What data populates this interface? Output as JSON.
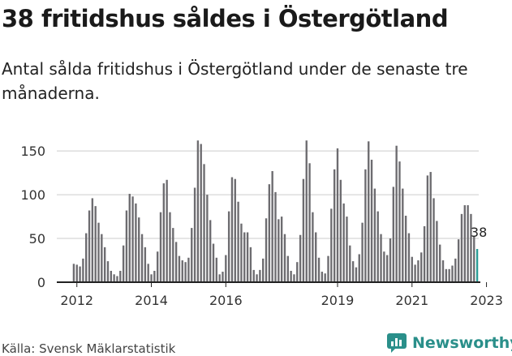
{
  "title": "38 fritidshus såldes i Östergötland",
  "subtitle": "Antal sålda fritidshus i Östergötland under de senaste tre månaderna.",
  "source": "Källa: Svensk Mäklarstatistik",
  "brand": "Newsworthy",
  "colors": {
    "bar": "#6d6c70",
    "highlight": "#2a9d96",
    "brand": "#2a8f8a",
    "axis": "#222222",
    "grid": "#cccccc"
  },
  "chart_data": {
    "type": "bar",
    "title": "38 fritidshus såldes i Östergötland",
    "ylim": [
      0,
      165
    ],
    "yticks": [
      0,
      50,
      100,
      150
    ],
    "xticks": [
      {
        "label": "2012",
        "index": 1
      },
      {
        "label": "2014",
        "index": 25
      },
      {
        "label": "2016",
        "index": 49
      },
      {
        "label": "2019",
        "index": 85
      },
      {
        "label": "2021",
        "index": 109
      },
      {
        "label": "2023",
        "index": 133
      }
    ],
    "start_label": "2011-12",
    "end_label": "2023-12",
    "values": [
      21,
      20,
      18,
      27,
      56,
      82,
      96,
      87,
      68,
      55,
      40,
      24,
      13,
      9,
      7,
      13,
      42,
      82,
      101,
      98,
      90,
      74,
      55,
      40,
      21,
      9,
      13,
      35,
      80,
      113,
      117,
      80,
      62,
      46,
      30,
      25,
      23,
      28,
      62,
      108,
      162,
      158,
      135,
      100,
      71,
      44,
      28,
      9,
      12,
      31,
      81,
      120,
      118,
      92,
      67,
      57,
      57,
      40,
      14,
      9,
      14,
      27,
      73,
      112,
      127,
      103,
      72,
      75,
      55,
      30,
      13,
      9,
      23,
      54,
      118,
      162,
      136,
      80,
      57,
      28,
      12,
      10,
      30,
      84,
      129,
      153,
      117,
      90,
      75,
      42,
      24,
      17,
      32,
      68,
      129,
      161,
      140,
      107,
      81,
      55,
      35,
      31,
      50,
      109,
      156,
      138,
      107,
      76,
      56,
      29,
      20,
      25,
      34,
      64,
      122,
      126,
      96,
      70,
      43,
      25,
      15,
      15,
      19,
      27,
      49,
      78,
      88,
      88,
      78,
      53,
      38
    ],
    "highlight_last": true,
    "last_label": "38"
  }
}
